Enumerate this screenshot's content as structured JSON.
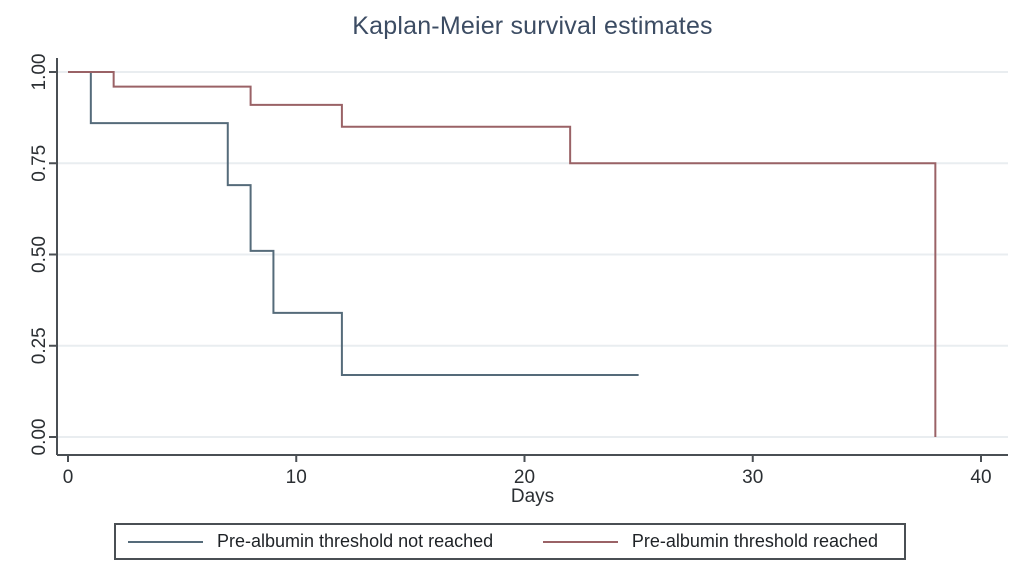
{
  "chart_data": {
    "type": "line",
    "subtype": "kaplan-meier-step",
    "title": "Kaplan-Meier survival estimates",
    "xlabel": "Days",
    "ylabel": "",
    "xlim": [
      0,
      40
    ],
    "ylim": [
      0.0,
      1.0
    ],
    "x_ticks": [
      "0",
      "10",
      "20",
      "30",
      "40"
    ],
    "y_ticks": [
      "0.00",
      "0.25",
      "0.50",
      "0.75",
      "1.00"
    ],
    "grid": "horizontal-light",
    "legend_position": "bottom-boxed",
    "series": [
      {
        "name": "Pre-albumin threshold not reached",
        "color": "#556b7a",
        "step_points": [
          [
            0,
            1.0
          ],
          [
            1,
            0.86
          ],
          [
            7,
            0.69
          ],
          [
            8,
            0.51
          ],
          [
            9,
            0.34
          ],
          [
            12,
            0.17
          ],
          [
            25,
            0.17
          ]
        ]
      },
      {
        "name": "Pre-albumin threshold reached",
        "color": "#9a6266",
        "step_points": [
          [
            0,
            1.0
          ],
          [
            2,
            0.96
          ],
          [
            8,
            0.91
          ],
          [
            12,
            0.85
          ],
          [
            22,
            0.75
          ],
          [
            38,
            0.0
          ]
        ]
      }
    ]
  },
  "colors": {
    "title_text": "#3c4c63",
    "axis_line": "#4a4f54",
    "tick_label": "#2b2f33",
    "gridline": "#e9edf0",
    "background": "#ffffff",
    "legend_border": "#4a4f54"
  }
}
